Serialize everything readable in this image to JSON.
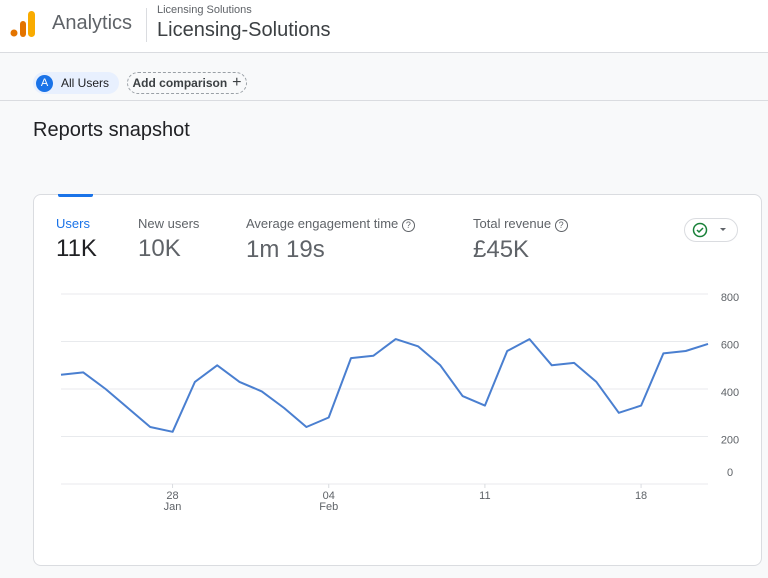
{
  "header": {
    "product": "Analytics",
    "account": "Licensing Solutions",
    "property": "Licensing-Solutions"
  },
  "toolbar": {
    "segment_badge": "A",
    "segment": "All Users",
    "add_comparison": "Add comparison"
  },
  "page_title": "Reports snapshot",
  "metrics": [
    {
      "label": "Users",
      "value": "11K"
    },
    {
      "label": "New users",
      "value": "10K"
    },
    {
      "label": "Average engagement time",
      "value": "1m 19s"
    },
    {
      "label": "Total revenue",
      "value": "£45K"
    }
  ],
  "chart_data": {
    "type": "line",
    "categories": [
      null,
      null,
      null,
      null,
      null,
      [
        "28",
        "Jan"
      ],
      null,
      null,
      null,
      null,
      null,
      null,
      [
        "04",
        "Feb"
      ],
      null,
      null,
      null,
      null,
      null,
      null,
      [
        "11"
      ],
      null,
      null,
      null,
      null,
      null,
      null,
      [
        "18"
      ],
      null,
      null,
      null
    ],
    "series": [
      {
        "name": "Users",
        "color": "#4a7fd0",
        "values": [
          460,
          470,
          400,
          320,
          240,
          220,
          430,
          500,
          430,
          390,
          320,
          240,
          280,
          530,
          540,
          610,
          580,
          500,
          370,
          330,
          560,
          610,
          500,
          510,
          430,
          300,
          330,
          550,
          560,
          590
        ]
      }
    ],
    "ylim": [
      0,
      800
    ],
    "yticks": [
      0,
      200,
      400,
      600,
      800
    ],
    "grid": true,
    "y_axis_side": "right"
  }
}
